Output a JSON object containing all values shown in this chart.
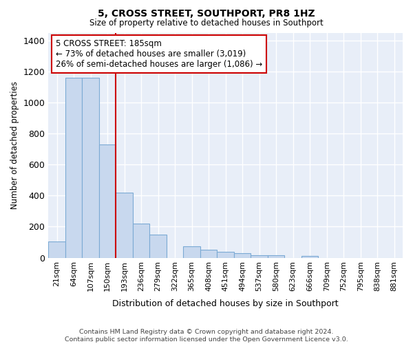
{
  "title": "5, CROSS STREET, SOUTHPORT, PR8 1HZ",
  "subtitle": "Size of property relative to detached houses in Southport",
  "xlabel": "Distribution of detached houses by size in Southport",
  "ylabel": "Number of detached properties",
  "footer_line1": "Contains HM Land Registry data © Crown copyright and database right 2024.",
  "footer_line2": "Contains public sector information licensed under the Open Government Licence v3.0.",
  "categories": [
    "21sqm",
    "64sqm",
    "107sqm",
    "150sqm",
    "193sqm",
    "236sqm",
    "279sqm",
    "322sqm",
    "365sqm",
    "408sqm",
    "451sqm",
    "494sqm",
    "537sqm",
    "580sqm",
    "623sqm",
    "666sqm",
    "709sqm",
    "752sqm",
    "795sqm",
    "838sqm",
    "881sqm"
  ],
  "values": [
    105,
    1160,
    1160,
    730,
    420,
    220,
    148,
    0,
    75,
    50,
    40,
    30,
    15,
    15,
    0,
    10,
    0,
    0,
    0,
    0,
    0
  ],
  "bar_color": "#c8d8ee",
  "bar_edge_color": "#7baad4",
  "fig_background_color": "#ffffff",
  "ax_background_color": "#e8eef8",
  "grid_color": "#ffffff",
  "vline_x": 4.0,
  "vline_color": "#cc0000",
  "annotation_text": "5 CROSS STREET: 185sqm\n← 73% of detached houses are smaller (3,019)\n26% of semi-detached houses are larger (1,086) →",
  "annotation_box_color": "#ffffff",
  "annotation_box_edge_color": "#cc0000",
  "ylim": [
    0,
    1450
  ],
  "yticks": [
    0,
    200,
    400,
    600,
    800,
    1000,
    1200,
    1400
  ]
}
